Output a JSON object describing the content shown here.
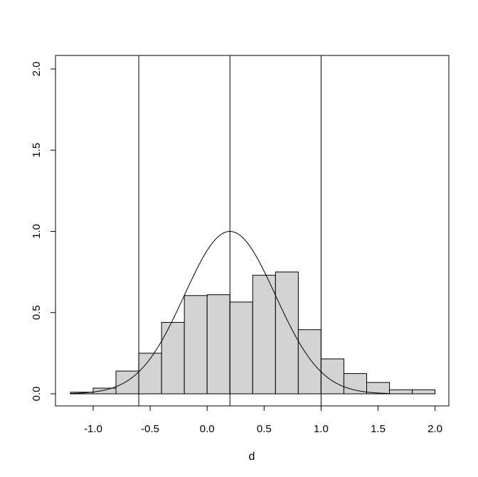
{
  "chart_data": {
    "type": "bar",
    "title": "",
    "xlabel": "d",
    "ylabel": "",
    "xlim": [
      -1.25,
      2.2
    ],
    "ylim": [
      -0.08,
      2.08
    ],
    "grid": false,
    "x_ticks": [
      -1.0,
      -0.5,
      0.0,
      0.5,
      1.0,
      1.5,
      2.0
    ],
    "x_tick_labels": [
      "-1.0",
      "-0.5",
      "0.0",
      "0.5",
      "1.0",
      "1.5",
      "2.0"
    ],
    "y_ticks": [
      0.0,
      0.5,
      1.0,
      1.5,
      2.0
    ],
    "y_tick_labels": [
      "0.0",
      "0.5",
      "1.0",
      "1.5",
      "2.0"
    ],
    "histogram": {
      "bin_edges": [
        -1.2,
        -1.0,
        -0.8,
        -0.6,
        -0.4,
        -0.2,
        0.0,
        0.2,
        0.4,
        0.6,
        0.8,
        1.0,
        1.2,
        1.4,
        1.6,
        1.8,
        2.0
      ],
      "density": [
        0.01,
        0.035,
        0.14,
        0.25,
        0.44,
        0.605,
        0.61,
        0.565,
        0.73,
        0.75,
        0.395,
        0.215,
        0.125,
        0.07,
        0.025,
        0.025
      ],
      "fill_color": "#d3d3d3",
      "edge_color": "#000000"
    },
    "density_curve": {
      "type": "line",
      "mean": 0.2,
      "sd": 0.4,
      "x_range": [
        -1.2,
        1.6
      ],
      "peak": 1.0
    },
    "vertical_lines": [
      -0.6,
      0.2,
      1.0
    ]
  }
}
